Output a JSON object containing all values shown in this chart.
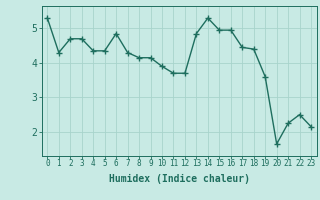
{
  "x": [
    0,
    1,
    2,
    3,
    4,
    5,
    6,
    7,
    8,
    9,
    10,
    11,
    12,
    13,
    14,
    15,
    16,
    17,
    18,
    19,
    20,
    21,
    22,
    23
  ],
  "y": [
    5.3,
    4.3,
    4.7,
    4.7,
    4.35,
    4.35,
    4.85,
    4.3,
    4.15,
    4.15,
    3.9,
    3.7,
    3.7,
    4.85,
    5.3,
    4.95,
    4.95,
    4.45,
    4.4,
    3.6,
    1.65,
    2.25,
    2.5,
    2.15
  ],
  "xlabel": "Humidex (Indice chaleur)",
  "ylim": [
    1.3,
    5.65
  ],
  "xlim": [
    -0.5,
    23.5
  ],
  "yticks": [
    2,
    3,
    4,
    5
  ],
  "xticks": [
    0,
    1,
    2,
    3,
    4,
    5,
    6,
    7,
    8,
    9,
    10,
    11,
    12,
    13,
    14,
    15,
    16,
    17,
    18,
    19,
    20,
    21,
    22,
    23
  ],
  "bg_color": "#c8eae4",
  "line_color": "#1e6e5e",
  "grid_color": "#a8d4cc",
  "marker": "+",
  "linewidth": 1.0,
  "markersize": 4,
  "tick_fontsize": 5.5,
  "ylabel_fontsize": 7,
  "xlabel_fontsize": 7
}
